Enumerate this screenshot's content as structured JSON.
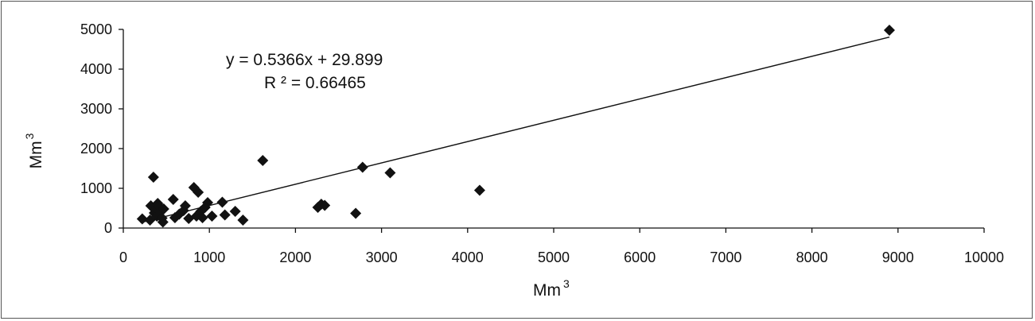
{
  "chart_data": {
    "type": "scatter",
    "xlabel": "Mm",
    "xlabel_sup": "3",
    "ylabel": "Mm",
    "ylabel_sup": "3",
    "xlim": [
      0,
      10000
    ],
    "ylim": [
      0,
      5000
    ],
    "xticks": [
      0,
      1000,
      2000,
      3000,
      4000,
      5000,
      6000,
      7000,
      8000,
      9000,
      10000
    ],
    "yticks": [
      0,
      1000,
      2000,
      3000,
      4000,
      5000
    ],
    "grid": false,
    "legend": "none",
    "marker": "diamond",
    "marker_color": "#111111",
    "trendline": {
      "slope": 0.5366,
      "intercept": 29.899,
      "x_range": [
        200,
        8900
      ],
      "equation_label": "y = 0.5366x + 29.899",
      "r2_label": "R ² = 0.66465"
    },
    "points": [
      {
        "x": 220,
        "y": 230
      },
      {
        "x": 310,
        "y": 200
      },
      {
        "x": 320,
        "y": 560
      },
      {
        "x": 350,
        "y": 1280
      },
      {
        "x": 360,
        "y": 380
      },
      {
        "x": 380,
        "y": 480
      },
      {
        "x": 390,
        "y": 300
      },
      {
        "x": 400,
        "y": 620
      },
      {
        "x": 420,
        "y": 540
      },
      {
        "x": 430,
        "y": 420
      },
      {
        "x": 450,
        "y": 250
      },
      {
        "x": 460,
        "y": 150
      },
      {
        "x": 470,
        "y": 480
      },
      {
        "x": 580,
        "y": 720
      },
      {
        "x": 600,
        "y": 260
      },
      {
        "x": 650,
        "y": 350
      },
      {
        "x": 700,
        "y": 440
      },
      {
        "x": 720,
        "y": 560
      },
      {
        "x": 760,
        "y": 240
      },
      {
        "x": 820,
        "y": 1020
      },
      {
        "x": 850,
        "y": 300
      },
      {
        "x": 870,
        "y": 900
      },
      {
        "x": 900,
        "y": 420
      },
      {
        "x": 920,
        "y": 260
      },
      {
        "x": 950,
        "y": 520
      },
      {
        "x": 980,
        "y": 640
      },
      {
        "x": 1030,
        "y": 300
      },
      {
        "x": 1150,
        "y": 650
      },
      {
        "x": 1180,
        "y": 330
      },
      {
        "x": 1300,
        "y": 420
      },
      {
        "x": 1390,
        "y": 200
      },
      {
        "x": 1620,
        "y": 1700
      },
      {
        "x": 2260,
        "y": 520
      },
      {
        "x": 2300,
        "y": 600
      },
      {
        "x": 2340,
        "y": 570
      },
      {
        "x": 2700,
        "y": 370
      },
      {
        "x": 2780,
        "y": 1530
      },
      {
        "x": 3100,
        "y": 1390
      },
      {
        "x": 4140,
        "y": 950
      },
      {
        "x": 8900,
        "y": 4980
      }
    ]
  }
}
